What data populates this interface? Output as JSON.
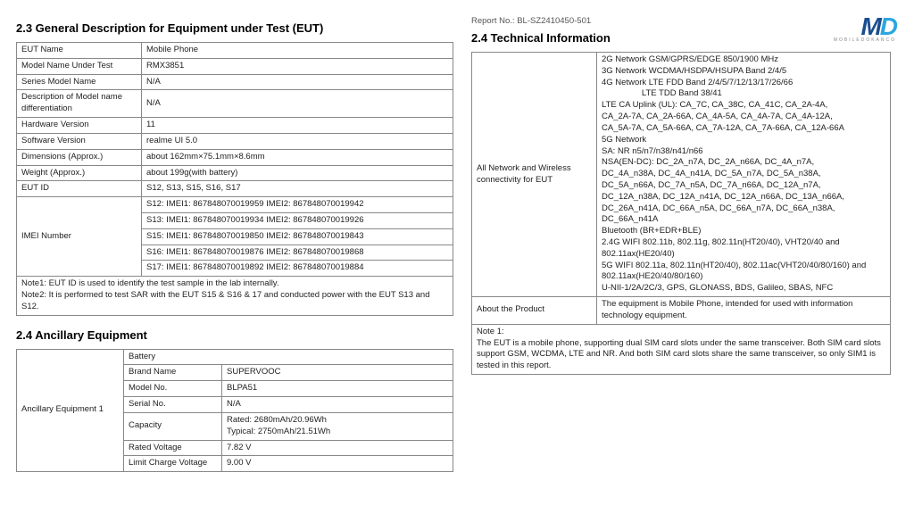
{
  "logo": {
    "m": "M",
    "d": "D",
    "sub": "MOBILEDOKANCO"
  },
  "left": {
    "section23_title": "2.3  General Description for Equipment under Test (EUT)",
    "eut_rows": [
      {
        "label": "EUT Name",
        "value": "Mobile Phone"
      },
      {
        "label": "Model Name Under Test",
        "value": "RMX3851"
      },
      {
        "label": "Series Model Name",
        "value": "N/A"
      },
      {
        "label": "Description of Model name differentiation",
        "value": "N/A"
      },
      {
        "label": "Hardware Version",
        "value": "11"
      },
      {
        "label": "Software Version",
        "value": "realme UI 5.0"
      },
      {
        "label": "Dimensions (Approx.)",
        "value": "about 162mm×75.1mm×8.6mm"
      },
      {
        "label": "Weight (Approx.)",
        "value": "about 199g(with battery)"
      },
      {
        "label": "EUT ID",
        "value": "S12, S13, S15, S16, S17"
      }
    ],
    "imei_label": "IMEI Number",
    "imei_rows": [
      "S12: IMEI1: 867848070019959 IMEI2: 867848070019942",
      "S13: IMEI1: 867848070019934 IMEI2: 867848070019926",
      "S15: IMEI1: 867848070019850 IMEI2: 867848070019843",
      "S16: IMEI1: 867848070019876 IMEI2: 867848070019868",
      "S17: IMEI1: 867848070019892 IMEI2: 867848070019884"
    ],
    "note1": "Note1: EUT ID is used to identify the test sample in the lab internally.",
    "note2": "Note2: It is performed to test SAR with the EUT S15 & S16 & 17 and conducted power with the EUT S13 and S12.",
    "section24a_title": "2.4  Ancillary Equipment",
    "ancillary_label": "Ancillary Equipment 1",
    "ancillary_rows": [
      {
        "label": "",
        "value": "Battery"
      },
      {
        "label": "Brand Name",
        "value": "SUPERVOOC"
      },
      {
        "label": "Model No.",
        "value": "BLPA51"
      },
      {
        "label": "Serial No.",
        "value": "N/A"
      },
      {
        "label": "Capacity",
        "value": "Rated: 2680mAh/20.96Wh\nTypical: 2750mAh/21.51Wh"
      },
      {
        "label": "Rated Voltage",
        "value": "7.82 V"
      },
      {
        "label": "Limit Charge Voltage",
        "value": "9.00 V"
      }
    ]
  },
  "right": {
    "report_no": "Report No.: BL-SZ2410450-501",
    "section24_title": "2.4  Technical Information",
    "network_label": "All Network and Wireless connectivity for EUT",
    "network_lines": [
      "2G Network GSM/GPRS/EDGE 850/1900 MHz",
      "3G Network WCDMA/HSDPA/HSUPA Band 2/4/5",
      "4G Network LTE FDD Band 2/4/5/7/12/13/17/26/66",
      "                 LTE TDD Band 38/41",
      "LTE CA Uplink (UL): CA_7C, CA_38C, CA_41C, CA_2A-4A,",
      "CA_2A-7A, CA_2A-66A, CA_4A-5A, CA_4A-7A, CA_4A-12A,",
      "CA_5A-7A, CA_5A-66A, CA_7A-12A, CA_7A-66A, CA_12A-66A",
      "5G Network",
      "SA: NR n5/n7/n38/n41/n66",
      "NSA(EN-DC): DC_2A_n7A, DC_2A_n66A, DC_4A_n7A,",
      "DC_4A_n38A, DC_4A_n41A, DC_5A_n7A, DC_5A_n38A,",
      "DC_5A_n66A, DC_7A_n5A, DC_7A_n66A, DC_12A_n7A,",
      "DC_12A_n38A, DC_12A_n41A, DC_12A_n66A, DC_13A_n66A,",
      "DC_26A_n41A, DC_66A_n5A, DC_66A_n7A, DC_66A_n38A,",
      "DC_66A_n41A",
      "Bluetooth (BR+EDR+BLE)",
      "2.4G WIFI 802.11b, 802.11g, 802.11n(HT20/40), VHT20/40 and",
      "802.11ax(HE20/40)",
      "5G WIFI 802.11a, 802.11n(HT20/40), 802.11ac(VHT20/40/80/160) and",
      "802.11ax(HE20/40/80/160)",
      "U-NII-1/2A/2C/3, GPS, GLONASS, BDS, Galileo, SBAS, NFC"
    ],
    "about_label": "About the Product",
    "about_value": "The equipment is Mobile Phone, intended for used with information technology equipment.",
    "note_title": "Note 1:",
    "note_body": "The EUT is a mobile phone, supporting dual SIM card slots under the same transceiver. Both SIM card slots support GSM, WCDMA, LTE and NR. And both SIM card slots share the same transceiver, so only SIM1 is tested in this report."
  }
}
